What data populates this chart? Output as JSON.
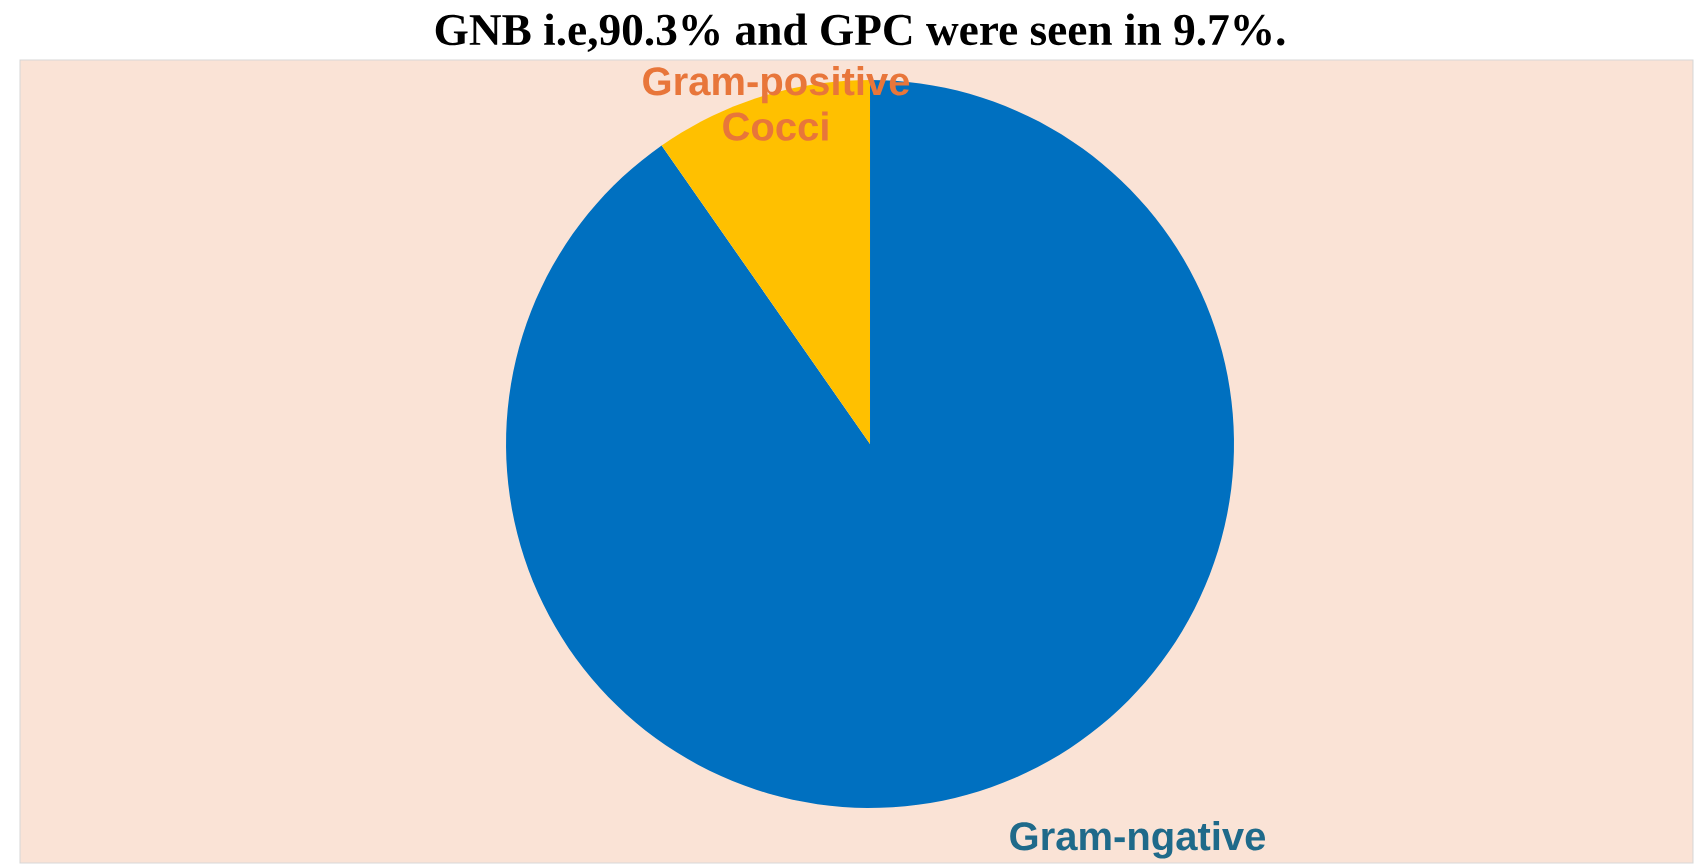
{
  "chart_data": {
    "type": "pie",
    "title": "GNB i.e,90.3% and GPC were seen in 9.7%.",
    "categories": [
      "Gram-ngative",
      "Gram-positive Cocci"
    ],
    "values": [
      90.3,
      9.7
    ],
    "colors": [
      "#0070c0",
      "#ffc000"
    ]
  }
}
